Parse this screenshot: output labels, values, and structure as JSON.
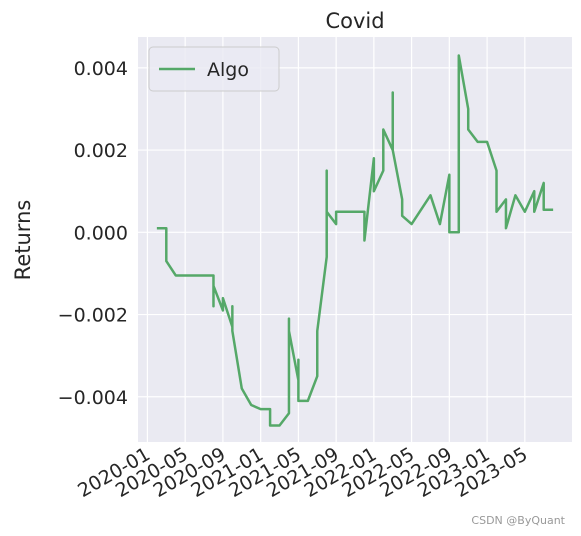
{
  "chart_data": {
    "type": "line",
    "title": "Covid",
    "y_label": "Returns",
    "x": [
      "2020-02",
      "2020-03",
      "2020-03",
      "2020-03",
      "2020-03",
      "2020-04",
      "2020-08",
      "2020-08",
      "2020-08",
      "2020-09",
      "2020-09",
      "2020-10",
      "2020-10",
      "2020-10",
      "2020-11",
      "2020-12",
      "2021-01",
      "2021-02",
      "2021-02",
      "2021-03",
      "2021-04",
      "2021-04",
      "2021-04",
      "2021-04",
      "2021-05",
      "2021-05",
      "2021-05",
      "2021-06",
      "2021-07",
      "2021-07",
      "2021-08",
      "2021-08",
      "2021-08",
      "2021-09",
      "2021-09",
      "2021-12",
      "2021-12",
      "2022-01",
      "2022-01",
      "2022-02",
      "2022-02",
      "2022-03",
      "2022-03",
      "2022-03",
      "2022-04",
      "2022-04",
      "2022-05",
      "2022-07",
      "2022-08",
      "2022-09",
      "2022-09",
      "2022-10",
      "2022-10",
      "2022-11",
      "2022-11",
      "2022-12",
      "2023-01",
      "2023-02",
      "2023-02",
      "2023-03",
      "2023-03",
      "2023-04",
      "2023-05",
      "2023-06",
      "2023-06",
      "2023-07",
      "2023-07",
      "2023-08"
    ],
    "series": [
      {
        "name": "Algo",
        "color": "#55a868",
        "values": [
          0.0001,
          0.0001,
          -0.0005,
          0.0001,
          -0.0007,
          -0.00105,
          -0.00105,
          -0.0018,
          -0.0013,
          -0.0019,
          -0.0016,
          -0.0023,
          -0.0018,
          -0.0024,
          -0.0038,
          -0.0042,
          -0.0043,
          -0.0043,
          -0.0047,
          -0.0047,
          -0.0044,
          -0.0021,
          -0.0035,
          -0.0024,
          -0.0036,
          -0.0031,
          -0.0041,
          -0.0041,
          -0.0035,
          -0.0024,
          -0.0006,
          0.0015,
          0.0005,
          0.0002,
          0.0005,
          0.0005,
          -0.0002,
          0.0018,
          0.001,
          0.0015,
          0.0025,
          0.002,
          0.0034,
          0.002,
          0.0008,
          0.0004,
          0.0002,
          0.0009,
          0.0002,
          0.0014,
          0,
          0,
          0.0043,
          0.003,
          0.0025,
          0.0022,
          0.0022,
          0.0015,
          0.0005,
          0.0008,
          0.0001,
          0.0009,
          0.0005,
          0.001,
          0.0005,
          0.0012,
          0.00055,
          0.00055
        ]
      }
    ],
    "xlim": [
      "2019-12",
      "2023-10"
    ],
    "xticks": [
      "2020-01",
      "2020-05",
      "2020-09",
      "2021-01",
      "2021-05",
      "2021-09",
      "2022-01",
      "2022-05",
      "2022-09",
      "2023-01",
      "2023-05"
    ],
    "ylim": [
      -0.0051,
      0.00475
    ],
    "yticks": [
      {
        "value": -0.004,
        "label": "−0.004"
      },
      {
        "value": -0.002,
        "label": "−0.002"
      },
      {
        "value": 0,
        "label": "0.000"
      },
      0.002,
      0.004
    ],
    "grid": true,
    "legend": "upper left",
    "background": "#eaeaf2",
    "watermark": "CSDN @ByQuant"
  }
}
